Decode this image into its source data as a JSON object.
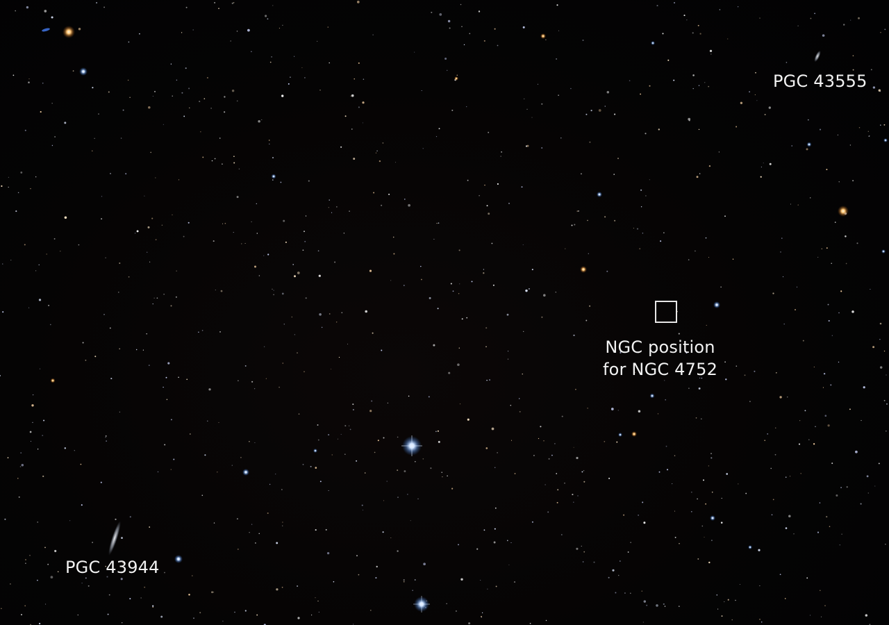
{
  "labels": {
    "pgc_43555": "PGC 43555",
    "pgc_43944": "PGC 43944",
    "ngc_line1": "NGC position",
    "ngc_line2": "for NGC 4752"
  },
  "colors": {
    "sky": "#030304",
    "label_text": "#f2f2f2",
    "marker": "#e8e8e8"
  },
  "icons": {
    "position_marker": "square-outline"
  }
}
